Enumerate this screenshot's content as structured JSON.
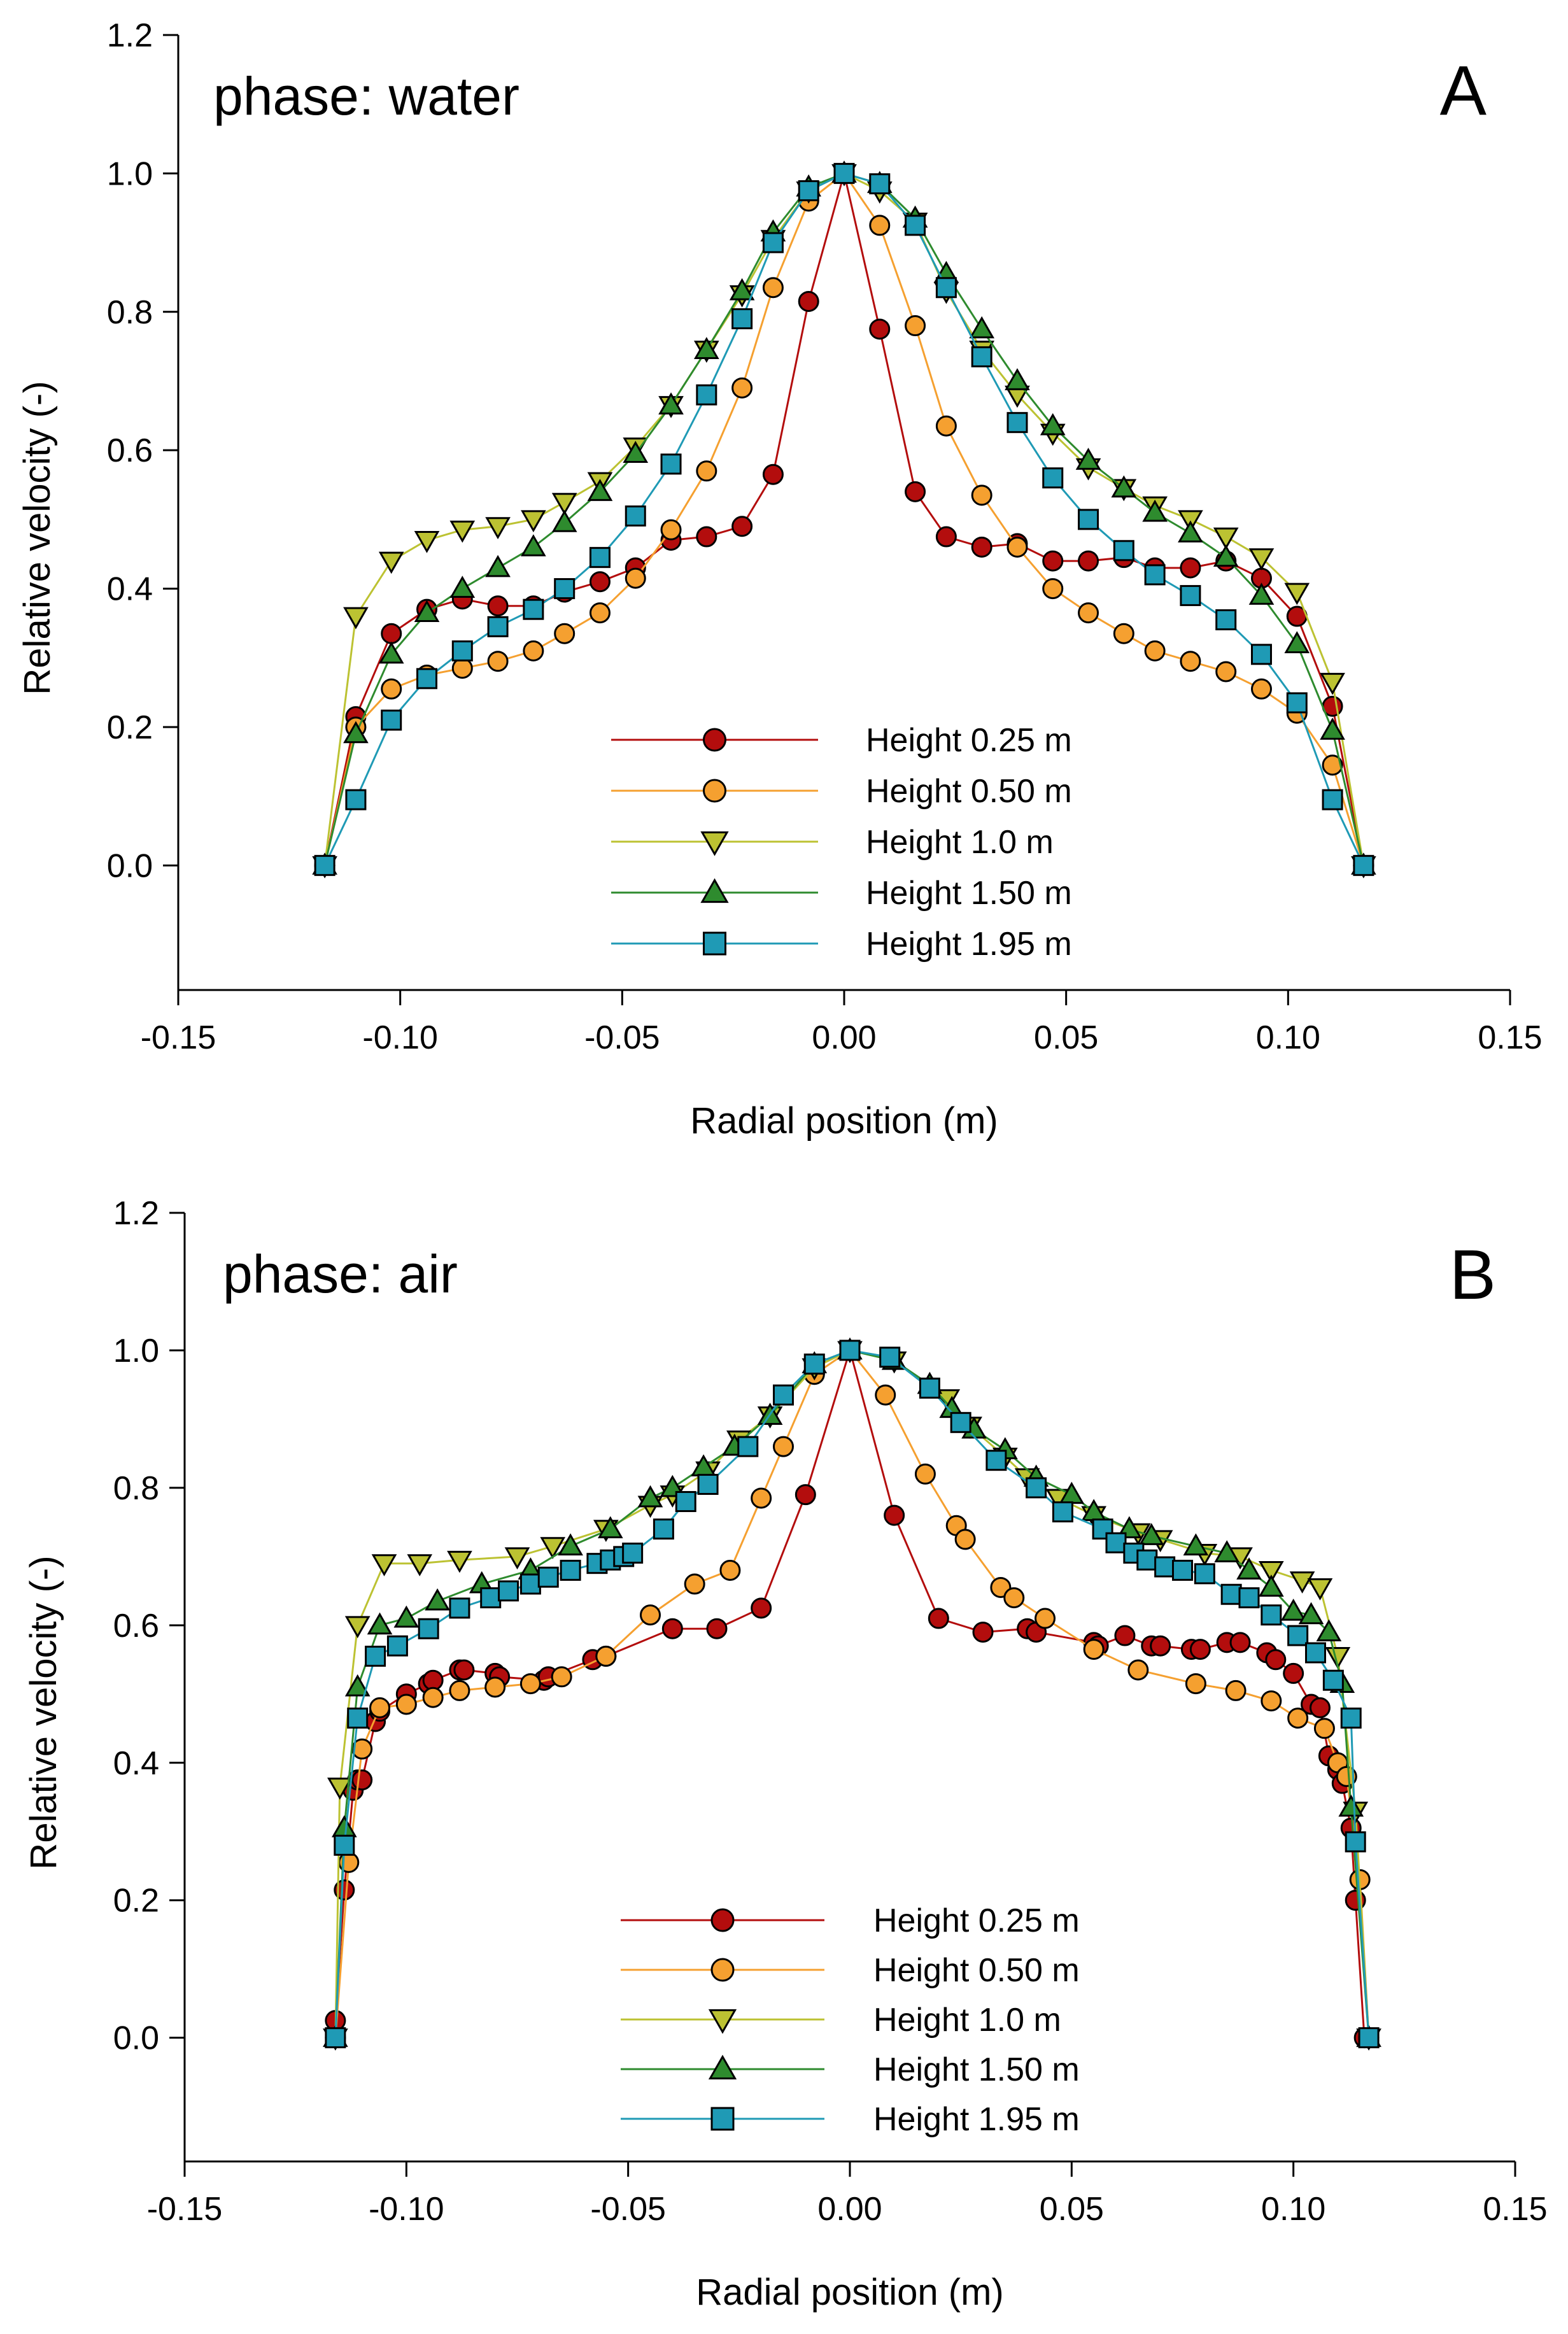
{
  "chart_data": [
    {
      "type": "line",
      "panel": "A",
      "title": "phase: water",
      "xlabel": "Radial position (m)",
      "ylabel": "Relative velocity (-)",
      "xlim": [
        -0.15,
        0.15
      ],
      "ylim": [
        -0.18,
        1.2
      ],
      "xticks": [
        -0.15,
        -0.1,
        -0.05,
        0.0,
        0.05,
        0.1,
        0.15
      ],
      "xtick_labels": [
        "-0.15",
        "-0.10",
        "-0.05",
        "0.00",
        "0.05",
        "0.10",
        "0.15"
      ],
      "yticks": [
        0.0,
        0.2,
        0.4,
        0.6,
        0.8,
        1.0,
        1.2
      ],
      "ytick_labels": [
        "0.0",
        "0.2",
        "0.4",
        "0.6",
        "0.8",
        "1.0",
        "1.2"
      ],
      "legend_position": "bottom-center",
      "series": [
        {
          "name": "Height 0.25 m",
          "marker": "circle",
          "color": "#b30d0d",
          "x": [
            -0.117,
            -0.11,
            -0.102,
            -0.094,
            -0.086,
            -0.078,
            -0.07,
            -0.063,
            -0.055,
            -0.047,
            -0.039,
            -0.031,
            -0.023,
            -0.016,
            -0.008,
            0.0,
            0.008,
            0.016,
            0.023,
            0.031,
            0.039,
            0.047,
            0.055,
            0.063,
            0.07,
            0.078,
            0.086,
            0.094,
            0.102,
            0.11,
            0.117
          ],
          "y": [
            0.0,
            0.215,
            0.335,
            0.37,
            0.385,
            0.375,
            0.375,
            0.395,
            0.41,
            0.43,
            0.47,
            0.475,
            0.49,
            0.565,
            0.815,
            1.0,
            0.775,
            0.54,
            0.475,
            0.46,
            0.465,
            0.44,
            0.44,
            0.445,
            0.43,
            0.43,
            0.44,
            0.415,
            0.36,
            0.23,
            0.0
          ]
        },
        {
          "name": "Height 0.50 m",
          "marker": "circle",
          "color": "#f5a030",
          "x": [
            -0.117,
            -0.11,
            -0.102,
            -0.094,
            -0.086,
            -0.078,
            -0.07,
            -0.063,
            -0.055,
            -0.047,
            -0.039,
            -0.031,
            -0.023,
            -0.016,
            -0.008,
            0.0,
            0.008,
            0.016,
            0.023,
            0.031,
            0.039,
            0.047,
            0.055,
            0.063,
            0.07,
            0.078,
            0.086,
            0.094,
            0.102,
            0.11,
            0.117
          ],
          "y": [
            0.0,
            0.2,
            0.255,
            0.275,
            0.285,
            0.295,
            0.31,
            0.335,
            0.365,
            0.415,
            0.485,
            0.57,
            0.69,
            0.835,
            0.96,
            1.0,
            0.925,
            0.78,
            0.635,
            0.535,
            0.46,
            0.4,
            0.365,
            0.335,
            0.31,
            0.295,
            0.28,
            0.255,
            0.22,
            0.145,
            0.0
          ]
        },
        {
          "name": "Height 1.0 m",
          "marker": "triangle-down",
          "color": "#bcc232",
          "x": [
            -0.117,
            -0.11,
            -0.102,
            -0.094,
            -0.086,
            -0.078,
            -0.07,
            -0.063,
            -0.055,
            -0.047,
            -0.039,
            -0.031,
            -0.023,
            -0.016,
            -0.008,
            0.0,
            0.008,
            0.016,
            0.023,
            0.031,
            0.039,
            0.047,
            0.055,
            0.063,
            0.07,
            0.078,
            0.086,
            0.094,
            0.102,
            0.11,
            0.117
          ],
          "y": [
            0.0,
            0.36,
            0.44,
            0.47,
            0.485,
            0.49,
            0.5,
            0.525,
            0.555,
            0.605,
            0.665,
            0.745,
            0.825,
            0.905,
            0.975,
            1.0,
            0.975,
            0.93,
            0.83,
            0.745,
            0.68,
            0.625,
            0.575,
            0.545,
            0.52,
            0.5,
            0.475,
            0.445,
            0.395,
            0.265,
            0.0
          ]
        },
        {
          "name": "Height 1.50 m",
          "marker": "triangle-up",
          "color": "#2e8b2e",
          "x": [
            -0.117,
            -0.11,
            -0.102,
            -0.094,
            -0.086,
            -0.078,
            -0.07,
            -0.063,
            -0.055,
            -0.047,
            -0.039,
            -0.031,
            -0.023,
            -0.016,
            -0.008,
            0.0,
            0.008,
            0.016,
            0.023,
            0.031,
            0.039,
            0.047,
            0.055,
            0.063,
            0.07,
            0.078,
            0.086,
            0.094,
            0.102,
            0.11,
            0.117
          ],
          "y": [
            0.0,
            0.19,
            0.305,
            0.365,
            0.4,
            0.43,
            0.46,
            0.495,
            0.54,
            0.595,
            0.665,
            0.745,
            0.83,
            0.915,
            0.98,
            1.0,
            0.985,
            0.935,
            0.855,
            0.775,
            0.7,
            0.635,
            0.585,
            0.545,
            0.51,
            0.48,
            0.445,
            0.39,
            0.32,
            0.195,
            0.0
          ]
        },
        {
          "name": "Height 1.95 m",
          "marker": "square",
          "color": "#1f9ab5",
          "x": [
            -0.117,
            -0.11,
            -0.102,
            -0.094,
            -0.086,
            -0.078,
            -0.07,
            -0.063,
            -0.055,
            -0.047,
            -0.039,
            -0.031,
            -0.023,
            -0.016,
            -0.008,
            0.0,
            0.008,
            0.016,
            0.023,
            0.031,
            0.039,
            0.047,
            0.055,
            0.063,
            0.07,
            0.078,
            0.086,
            0.094,
            0.102,
            0.11,
            0.117
          ],
          "y": [
            0.0,
            0.095,
            0.21,
            0.27,
            0.31,
            0.345,
            0.37,
            0.4,
            0.445,
            0.505,
            0.58,
            0.68,
            0.79,
            0.9,
            0.975,
            1.0,
            0.985,
            0.925,
            0.835,
            0.735,
            0.64,
            0.56,
            0.5,
            0.455,
            0.42,
            0.39,
            0.355,
            0.305,
            0.235,
            0.095,
            0.0
          ]
        }
      ]
    },
    {
      "type": "line",
      "panel": "B",
      "title": "phase: air",
      "xlabel": "Radial position (m)",
      "ylabel": "Relative velocity (-)",
      "xlim": [
        -0.15,
        0.15
      ],
      "ylim": [
        -0.18,
        1.2
      ],
      "xticks": [
        -0.15,
        -0.1,
        -0.05,
        0.0,
        0.05,
        0.1,
        0.15
      ],
      "xtick_labels": [
        "-0.15",
        "-0.10",
        "-0.05",
        "0.00",
        "0.05",
        "0.10",
        "0.15"
      ],
      "yticks": [
        0.0,
        0.2,
        0.4,
        0.6,
        0.8,
        1.0,
        1.2
      ],
      "ytick_labels": [
        "0.0",
        "0.2",
        "0.4",
        "0.6",
        "0.8",
        "1.0",
        "1.2"
      ],
      "legend_position": "bottom-center",
      "series": [
        {
          "name": "Height 0.25 m",
          "marker": "circle",
          "color": "#b30d0d",
          "x": [
            -0.116,
            -0.114,
            -0.112,
            -0.111,
            -0.11,
            -0.107,
            -0.106,
            -0.1,
            -0.095,
            -0.094,
            -0.088,
            -0.087,
            -0.08,
            -0.079,
            -0.069,
            -0.068,
            -0.058,
            -0.055,
            -0.04,
            -0.03,
            -0.02,
            -0.01,
            0.0,
            0.01,
            0.02,
            0.03,
            0.04,
            0.042,
            0.055,
            0.056,
            0.062,
            0.068,
            0.07,
            0.077,
            0.079,
            0.085,
            0.088,
            0.094,
            0.096,
            0.1,
            0.104,
            0.106,
            0.108,
            0.11,
            0.111,
            0.113,
            0.114,
            0.116
          ],
          "y": [
            0.025,
            0.215,
            0.36,
            0.375,
            0.375,
            0.46,
            0.475,
            0.5,
            0.515,
            0.52,
            0.535,
            0.535,
            0.53,
            0.525,
            0.52,
            0.525,
            0.55,
            0.555,
            0.595,
            0.595,
            0.625,
            0.79,
            1.0,
            0.76,
            0.61,
            0.59,
            0.595,
            0.59,
            0.575,
            0.57,
            0.585,
            0.57,
            0.57,
            0.565,
            0.565,
            0.575,
            0.575,
            0.56,
            0.55,
            0.53,
            0.485,
            0.48,
            0.41,
            0.39,
            0.37,
            0.305,
            0.2,
            0.0
          ]
        },
        {
          "name": "Height 0.50 m",
          "marker": "circle",
          "color": "#f5a030",
          "x": [
            -0.116,
            -0.113,
            -0.11,
            -0.106,
            -0.1,
            -0.094,
            -0.088,
            -0.08,
            -0.072,
            -0.065,
            -0.055,
            -0.045,
            -0.035,
            -0.027,
            -0.02,
            -0.015,
            -0.008,
            0.0,
            0.008,
            0.017,
            0.024,
            0.026,
            0.034,
            0.037,
            0.044,
            0.055,
            0.065,
            0.078,
            0.087,
            0.095,
            0.101,
            0.107,
            0.11,
            0.112,
            0.115,
            0.117
          ],
          "y": [
            0.0,
            0.255,
            0.42,
            0.48,
            0.485,
            0.495,
            0.505,
            0.51,
            0.515,
            0.525,
            0.555,
            0.615,
            0.66,
            0.68,
            0.785,
            0.86,
            0.965,
            1.0,
            0.935,
            0.82,
            0.745,
            0.725,
            0.655,
            0.64,
            0.61,
            0.565,
            0.535,
            0.515,
            0.505,
            0.49,
            0.465,
            0.45,
            0.4,
            0.38,
            0.23,
            0.0
          ]
        },
        {
          "name": "Height 1.0 m",
          "marker": "triangle-down",
          "color": "#bcc232",
          "x": [
            -0.116,
            -0.115,
            -0.111,
            -0.105,
            -0.097,
            -0.088,
            -0.075,
            -0.067,
            -0.055,
            -0.045,
            -0.04,
            -0.032,
            -0.025,
            -0.018,
            -0.008,
            0.0,
            0.01,
            0.022,
            0.027,
            0.035,
            0.04,
            0.047,
            0.055,
            0.065,
            0.07,
            0.08,
            0.088,
            0.095,
            0.102,
            0.106,
            0.11,
            0.114,
            0.117
          ],
          "y": [
            0.0,
            0.365,
            0.6,
            0.69,
            0.69,
            0.695,
            0.7,
            0.715,
            0.74,
            0.775,
            0.79,
            0.825,
            0.87,
            0.905,
            0.975,
            1.0,
            0.985,
            0.93,
            0.89,
            0.845,
            0.815,
            0.785,
            0.76,
            0.735,
            0.725,
            0.705,
            0.7,
            0.68,
            0.665,
            0.655,
            0.555,
            0.33,
            0.0
          ]
        },
        {
          "name": "Height 1.50 m",
          "marker": "triangle-up",
          "color": "#2e8b2e",
          "x": [
            -0.116,
            -0.114,
            -0.111,
            -0.106,
            -0.1,
            -0.093,
            -0.083,
            -0.072,
            -0.063,
            -0.054,
            -0.045,
            -0.04,
            -0.033,
            -0.026,
            -0.018,
            -0.008,
            0.0,
            0.01,
            0.018,
            0.023,
            0.028,
            0.035,
            0.042,
            0.05,
            0.055,
            0.063,
            0.068,
            0.078,
            0.085,
            0.09,
            0.095,
            0.1,
            0.104,
            0.108,
            0.111,
            0.113,
            0.117
          ],
          "y": [
            0.0,
            0.305,
            0.51,
            0.6,
            0.61,
            0.635,
            0.66,
            0.68,
            0.715,
            0.74,
            0.785,
            0.8,
            0.83,
            0.86,
            0.905,
            0.98,
            1.0,
            0.985,
            0.95,
            0.915,
            0.885,
            0.855,
            0.815,
            0.79,
            0.765,
            0.74,
            0.73,
            0.715,
            0.705,
            0.68,
            0.655,
            0.62,
            0.615,
            0.59,
            0.515,
            0.335,
            0.0
          ]
        },
        {
          "name": "Height 1.95 m",
          "marker": "square",
          "color": "#1f9ab5",
          "x": [
            -0.116,
            -0.114,
            -0.111,
            -0.107,
            -0.102,
            -0.095,
            -0.088,
            -0.081,
            -0.077,
            -0.072,
            -0.068,
            -0.063,
            -0.057,
            -0.054,
            -0.051,
            -0.049,
            -0.042,
            -0.037,
            -0.032,
            -0.023,
            -0.015,
            -0.008,
            0.0,
            0.009,
            0.018,
            0.025,
            0.033,
            0.042,
            0.048,
            0.057,
            0.06,
            0.064,
            0.067,
            0.071,
            0.075,
            0.08,
            0.086,
            0.09,
            0.095,
            0.101,
            0.105,
            0.109,
            0.113,
            0.114,
            0.117
          ],
          "y": [
            0.0,
            0.28,
            0.465,
            0.555,
            0.57,
            0.595,
            0.625,
            0.64,
            0.65,
            0.66,
            0.67,
            0.68,
            0.69,
            0.695,
            0.7,
            0.705,
            0.74,
            0.78,
            0.805,
            0.86,
            0.935,
            0.98,
            1.0,
            0.99,
            0.945,
            0.895,
            0.84,
            0.8,
            0.765,
            0.74,
            0.72,
            0.705,
            0.695,
            0.685,
            0.68,
            0.675,
            0.645,
            0.64,
            0.615,
            0.585,
            0.56,
            0.52,
            0.465,
            0.285,
            0.0
          ]
        }
      ]
    }
  ]
}
